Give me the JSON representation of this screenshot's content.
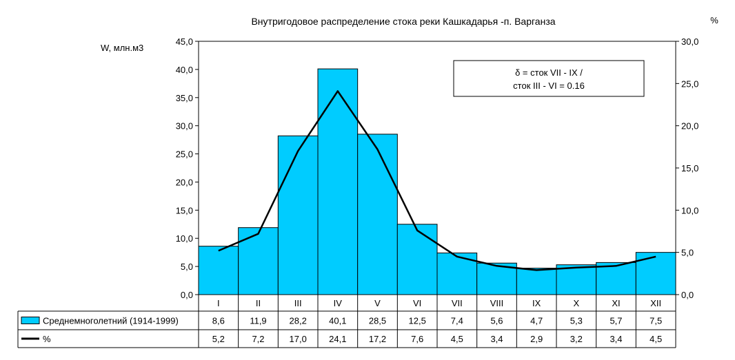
{
  "chart_data": {
    "type": "bar",
    "title": "Внутригодовое распределение стока реки Кашкадарья -п. Варганза",
    "ylabel": "W, млн.м3",
    "y2label": "%",
    "categories": [
      "I",
      "II",
      "III",
      "IV",
      "V",
      "VI",
      "VII",
      "VIII",
      "IX",
      "X",
      "XI",
      "XII"
    ],
    "ylim": [
      0,
      45
    ],
    "y2lim": [
      0,
      30
    ],
    "yticks": [
      "0,0",
      "5,0",
      "10,0",
      "15,0",
      "20,0",
      "25,0",
      "30,0",
      "35,0",
      "40,0",
      "45,0"
    ],
    "y2ticks": [
      "0,0",
      "5,0",
      "10,0",
      "15,0",
      "20,0",
      "25,0",
      "30,0"
    ],
    "series": [
      {
        "name": "Среднемноголетний (1914-1999)",
        "type": "bar",
        "axis": "left",
        "color": "#00ccff",
        "values": [
          8.6,
          11.9,
          28.2,
          40.1,
          28.5,
          12.5,
          7.4,
          5.6,
          4.7,
          5.3,
          5.7,
          7.5
        ],
        "labels": [
          "8,6",
          "11,9",
          "28,2",
          "40,1",
          "28,5",
          "12,5",
          "7,4",
          "5,6",
          "4,7",
          "5,3",
          "5,7",
          "7,5"
        ]
      },
      {
        "name": "%",
        "type": "line",
        "axis": "right",
        "color": "#000000",
        "values": [
          5.2,
          7.2,
          17.0,
          24.1,
          17.2,
          7.6,
          4.5,
          3.4,
          2.9,
          3.2,
          3.4,
          4.5
        ],
        "labels": [
          "5,2",
          "7,2",
          "17,0",
          "24,1",
          "17,2",
          "7,6",
          "4,5",
          "3,4",
          "2,9",
          "3,2",
          "3,4",
          "4,5"
        ]
      }
    ],
    "annotation": [
      "δ = сток VII - IX /",
      "сток III - VI = 0.16"
    ],
    "data_table": true,
    "grid": false
  }
}
